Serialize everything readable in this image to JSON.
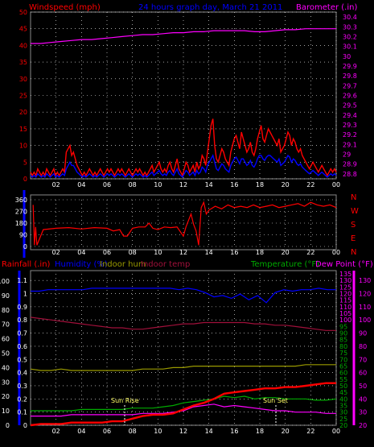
{
  "chart_data": [
    {
      "type": "line",
      "title": "24 hours graph day, March 21 2011",
      "left_axis_label": "Windspeed (mph)",
      "right_axis_label": "Barometer (.in)",
      "x_ticks": [
        "02",
        "04",
        "06",
        "08",
        "10",
        "12",
        "14",
        "16",
        "18",
        "20",
        "22",
        "00"
      ],
      "y_left_ticks": [
        "0",
        "5",
        "10",
        "15",
        "20",
        "25",
        "30",
        "35",
        "40",
        "45",
        "50"
      ],
      "y_left_range": [
        0,
        50
      ],
      "y_right_ticks": [
        "28.8",
        "28.9",
        "29",
        "29.1",
        "29.2",
        "29.3",
        "29.4",
        "29.5",
        "29.6",
        "29.7",
        "29.8",
        "29.9",
        "30",
        "30.1",
        "30.2",
        "30.3",
        "30.4"
      ],
      "y_right_range": [
        28.75,
        30.45
      ],
      "grid": true,
      "series": [
        {
          "color": "#ff0000",
          "axis": "left",
          "values": [
            2,
            1,
            2,
            1,
            3,
            2,
            1,
            2,
            1,
            3,
            2,
            1,
            2,
            3,
            1,
            2,
            1,
            2,
            3,
            2,
            8,
            9,
            10,
            7,
            8,
            6,
            4,
            3,
            2,
            1,
            2,
            1,
            2,
            3,
            2,
            1,
            2,
            1,
            2,
            3,
            2,
            1,
            2,
            3,
            2,
            3,
            2,
            1,
            2,
            3,
            2,
            3,
            2,
            1,
            2,
            3,
            2,
            1,
            2,
            3,
            2,
            3,
            2,
            1,
            2,
            1,
            2,
            3,
            4,
            2,
            3,
            4,
            5,
            3,
            2,
            3,
            2,
            4,
            5,
            3,
            2,
            4,
            6,
            3,
            2,
            1,
            3,
            5,
            4,
            2,
            3,
            4,
            2,
            5,
            3,
            4,
            7,
            6,
            4,
            8,
            12,
            16,
            18,
            10,
            6,
            5,
            7,
            9,
            8,
            6,
            5,
            4,
            8,
            10,
            12,
            13,
            11,
            9,
            14,
            12,
            10,
            8,
            9,
            11,
            8,
            7,
            9,
            12,
            14,
            16,
            12,
            11,
            13,
            15,
            14,
            13,
            12,
            11,
            10,
            12,
            8,
            9,
            10,
            12,
            14,
            13,
            10,
            12,
            11,
            9,
            8,
            9,
            7,
            6,
            5,
            4,
            3,
            4,
            5,
            4,
            3,
            2,
            3,
            4,
            3,
            2,
            1,
            2,
            3,
            2,
            3,
            2
          ]
        },
        {
          "color": "#0000ff",
          "axis": "left",
          "values": [
            1,
            0.5,
            1,
            0.5,
            1.5,
            1,
            0.5,
            1,
            0.5,
            1.5,
            1,
            0.5,
            1,
            1.5,
            0.5,
            1,
            0.5,
            1,
            1.5,
            1,
            3,
            4,
            5,
            4,
            4,
            3,
            2,
            1.5,
            1,
            0.5,
            1,
            0.5,
            1,
            1.5,
            1,
            0.5,
            1,
            0.5,
            1,
            1.5,
            1,
            0.5,
            1,
            1.5,
            1,
            1.5,
            1,
            0.5,
            1,
            1.5,
            1,
            1.5,
            1,
            0.5,
            1,
            1.5,
            1,
            0.5,
            1,
            1.5,
            1,
            1.5,
            1,
            0.5,
            1,
            0.5,
            1,
            1.5,
            2,
            1,
            1.5,
            2,
            2.5,
            1.5,
            1,
            1.5,
            1,
            2,
            2.5,
            1.5,
            1,
            2,
            3,
            1.5,
            1,
            0.5,
            1.5,
            2.5,
            2,
            1,
            1.5,
            2,
            1,
            2.5,
            1.5,
            2,
            3.5,
            3,
            2,
            4,
            5,
            6,
            7,
            5,
            3,
            2.5,
            3.5,
            4.5,
            4,
            3,
            2.5,
            2,
            4,
            5,
            6,
            6.5,
            5.5,
            4.5,
            6,
            6,
            5,
            4,
            4.5,
            5.5,
            4,
            3.5,
            4.5,
            6,
            7,
            7,
            6,
            5.5,
            6.5,
            7,
            7,
            6.5,
            6,
            5.5,
            5,
            6,
            4,
            4.5,
            5,
            6,
            7,
            6.5,
            5,
            6,
            5.5,
            4.5,
            4,
            4.5,
            3.5,
            3,
            2.5,
            2,
            1.5,
            2,
            2.5,
            2,
            1.5,
            1,
            1.5,
            2,
            1.5,
            1,
            0.5,
            1,
            1.5,
            1,
            1.5,
            1
          ]
        },
        {
          "color": "#ff00ff",
          "axis": "right",
          "values": [
            30.13,
            30.13,
            30.14,
            30.15,
            30.16,
            30.17,
            30.17,
            30.18,
            30.19,
            30.2,
            30.21,
            30.22,
            30.22,
            30.23,
            30.24,
            30.24,
            30.25,
            30.25,
            30.26,
            30.26,
            30.26,
            30.26,
            30.25,
            30.25,
            30.26,
            30.27,
            30.27,
            30.28,
            30.28,
            30.28,
            30.28
          ]
        }
      ]
    },
    {
      "type": "scatter",
      "title": "",
      "y_ticks": [
        "360",
        "270",
        "180",
        "90",
        "0"
      ],
      "y_range": [
        0,
        360
      ],
      "right_labels": [
        "N",
        "W",
        "S",
        "E",
        "N"
      ],
      "x_ticks": [
        "02",
        "04",
        "06",
        "08",
        "10",
        "12",
        "14",
        "16",
        "18",
        "20",
        "22",
        "00"
      ],
      "series": [
        {
          "color": "#ff0000",
          "values": [
            [
              0.2,
              320
            ],
            [
              0.3,
              10
            ],
            [
              0.4,
              150
            ],
            [
              0.5,
              10
            ],
            [
              1,
              130
            ],
            [
              2,
              140
            ],
            [
              3,
              145
            ],
            [
              4,
              135
            ],
            [
              5,
              145
            ],
            [
              6,
              140
            ],
            [
              6.5,
              120
            ],
            [
              7,
              130
            ],
            [
              7.3,
              80
            ],
            [
              7.6,
              80
            ],
            [
              8,
              140
            ],
            [
              8.5,
              150
            ],
            [
              9,
              150
            ],
            [
              9.3,
              180
            ],
            [
              9.6,
              140
            ],
            [
              10,
              130
            ],
            [
              10.5,
              150
            ],
            [
              11,
              145
            ],
            [
              11.5,
              150
            ],
            [
              12,
              80
            ],
            [
              12.2,
              150
            ],
            [
              12.4,
              200
            ],
            [
              12.6,
              250
            ],
            [
              12.8,
              170
            ],
            [
              13,
              120
            ],
            [
              13.2,
              10
            ],
            [
              13.4,
              300
            ],
            [
              13.6,
              340
            ],
            [
              13.8,
              250
            ],
            [
              14,
              280
            ],
            [
              14.5,
              310
            ],
            [
              15,
              290
            ],
            [
              15.5,
              320
            ],
            [
              16,
              300
            ],
            [
              16.5,
              310
            ],
            [
              17,
              300
            ],
            [
              17.5,
              320
            ],
            [
              18,
              300
            ],
            [
              18.5,
              310
            ],
            [
              19,
              320
            ],
            [
              19.5,
              300
            ],
            [
              20,
              310
            ],
            [
              20.5,
              320
            ],
            [
              21,
              330
            ],
            [
              21.5,
              310
            ],
            [
              22,
              340
            ],
            [
              22.5,
              320
            ],
            [
              23,
              310
            ],
            [
              23.5,
              320
            ],
            [
              24,
              300
            ]
          ]
        }
      ]
    },
    {
      "type": "line",
      "title": "",
      "labels": {
        "rainfall": "Rainfall (.in)",
        "humidity": "Humidity (%)",
        "indoor_hum": "Indoor hum",
        "indoor_temp": "Indoor temp",
        "temperature": "Temperature (°F)",
        "dew_point": "Dew Point (°F)"
      },
      "y_rain_ticks": [
        "0",
        "0.1",
        "0.2",
        "0.3",
        "0.4",
        "0.5",
        "0.6",
        "0.7",
        "0.8",
        "0.9",
        "1",
        "1.1"
      ],
      "y_rain_range": [
        0,
        1.15
      ],
      "y_hum_ticks": [
        "0",
        "10",
        "20",
        "30",
        "40",
        "50",
        "60",
        "70",
        "80",
        "90",
        "100"
      ],
      "y_temp_ticks": [
        "20",
        "25",
        "30",
        "35",
        "40",
        "45",
        "50",
        "55",
        "60",
        "65",
        "70",
        "75",
        "80",
        "85",
        "90",
        "95",
        "100",
        "105",
        "110",
        "115",
        "120",
        "125",
        "130",
        "135"
      ],
      "y_temp_range": [
        20,
        135
      ],
      "x_ticks": [
        "02",
        "04",
        "06",
        "08",
        "10",
        "12",
        "14",
        "16",
        "18",
        "20",
        "22",
        "00"
      ],
      "annotations": [
        "Sun Rise",
        "Sun Set"
      ],
      "series": [
        {
          "name": "Humidity (%)",
          "color": "#0000ff",
          "axis": "hum",
          "values": [
            93,
            93,
            94,
            94,
            94,
            94,
            94,
            95,
            95,
            95,
            95,
            95,
            95,
            95,
            95,
            95,
            95,
            94,
            95,
            94,
            92,
            89,
            90,
            88,
            91,
            87,
            90,
            85,
            92,
            94,
            93,
            94,
            94,
            95,
            94,
            94
          ]
        },
        {
          "name": "Indoor temp",
          "color": "#a0103a",
          "axis": "temp",
          "values": [
            102,
            101,
            100,
            99,
            98,
            97,
            96,
            95,
            94,
            94,
            93,
            93,
            94,
            95,
            96,
            97,
            97,
            98,
            98,
            98,
            98,
            98,
            97,
            97,
            96,
            96,
            95,
            94,
            93,
            92,
            92
          ]
        },
        {
          "name": "Indoor hum",
          "color": "#999900",
          "axis": "hum",
          "values": [
            39,
            38,
            38,
            39,
            38,
            38,
            38,
            38,
            38,
            38,
            38,
            39,
            39,
            39,
            40,
            40,
            41,
            41,
            41,
            41,
            41,
            41,
            41,
            41,
            41,
            41,
            41,
            42,
            42,
            42,
            42
          ]
        },
        {
          "name": "Temperature (°F)",
          "color": "#00aa00",
          "axis": "temp",
          "values": [
            31,
            31,
            31,
            31,
            31,
            32,
            32,
            32,
            32,
            32,
            33,
            33,
            33,
            34,
            35,
            37,
            38,
            39,
            40,
            42,
            41,
            42,
            40,
            41,
            41,
            40,
            40,
            40,
            39,
            39,
            40
          ]
        },
        {
          "name": "Dew Point (°F)",
          "color": "#ff00ff",
          "axis": "temp",
          "values": [
            27,
            27,
            27,
            27,
            28,
            28,
            28,
            28,
            28,
            28,
            28,
            29,
            29,
            29,
            30,
            31,
            34,
            35,
            36,
            34,
            35,
            34,
            33,
            32,
            31,
            31,
            30,
            30,
            30,
            29,
            29
          ]
        },
        {
          "name": "Rainfall (.in)",
          "color": "#ff0000",
          "axis": "rain",
          "values": [
            0,
            0.01,
            0.01,
            0.01,
            0.02,
            0.02,
            0.02,
            0.02,
            0.03,
            0.03,
            0.05,
            0.07,
            0.08,
            0.08,
            0.09,
            0.12,
            0.15,
            0.17,
            0.2,
            0.24,
            0.25,
            0.26,
            0.27,
            0.28,
            0.28,
            0.29,
            0.29,
            0.3,
            0.31,
            0.32,
            0.32
          ]
        }
      ]
    }
  ]
}
